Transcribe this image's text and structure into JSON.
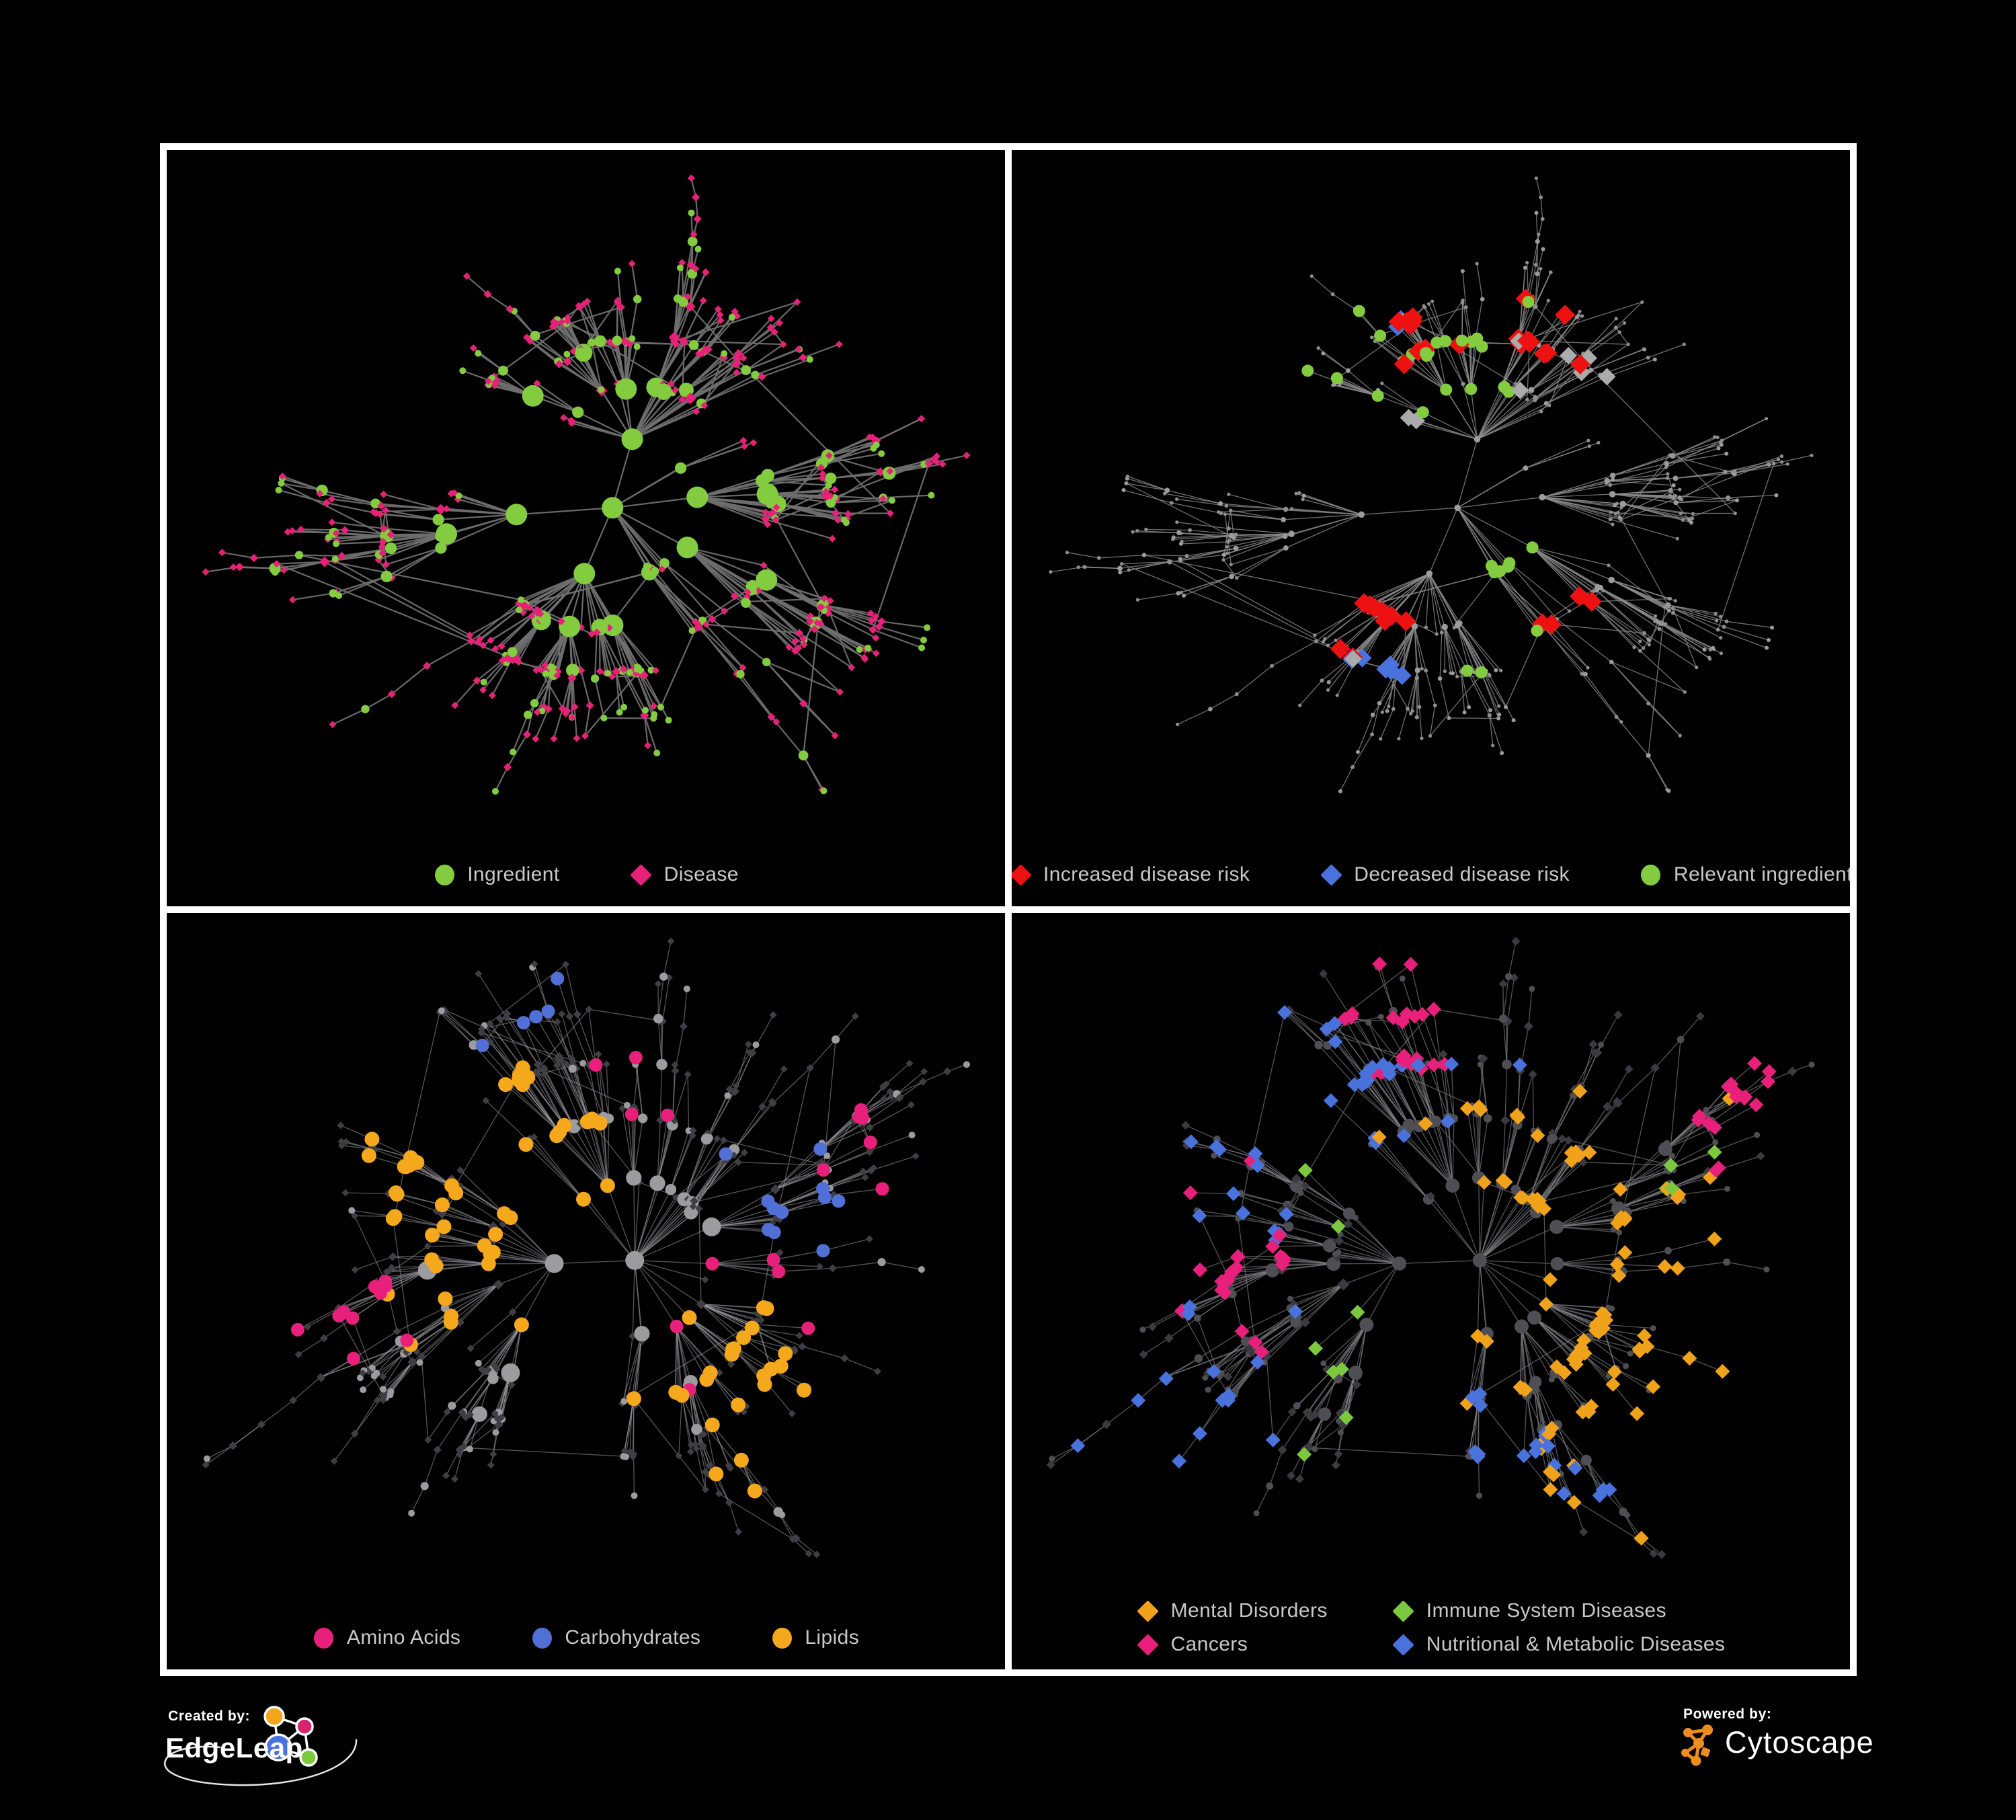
{
  "figure": {
    "background": "#000000",
    "panel_border": "#ffffff"
  },
  "branding": {
    "created_by": {
      "label": "Created by:",
      "name": "EdgeLeap",
      "logo_colors": {
        "orange": "#F2A71B",
        "pink": "#D6246E",
        "blue": "#4A72DC",
        "green": "#7CC83E"
      }
    },
    "powered_by": {
      "label": "Powered by:",
      "name": "Cytoscape",
      "logo_color": "#EE8C1E"
    }
  },
  "panels": [
    {
      "id": "ingredient-disease",
      "legend": {
        "columns": 1,
        "items": [
          {
            "label": "Ingredient",
            "shape": "circle",
            "color": "#84CC3F"
          },
          {
            "label": "Disease",
            "shape": "diamond",
            "color": "#E52277"
          }
        ]
      },
      "network": {
        "seed": 20240,
        "nodes": 520,
        "extra": 85,
        "len": 150
      },
      "style": {
        "edge": {
          "color": "#6f6f6f",
          "width": 2.2,
          "opacity": 0.95
        },
        "ing": {
          "shape": "circle",
          "color": "#84CC3F",
          "base": 5,
          "per": 1.2,
          "max": 11
        },
        "dis": {
          "shape": "diamond",
          "color": "#E52277",
          "base": 5.5,
          "per": 0.6,
          "max": 3
        }
      },
      "highlights": []
    },
    {
      "id": "disease-risk",
      "legend": {
        "columns": 1,
        "items": [
          {
            "label": "Increased disease risk",
            "shape": "diamond",
            "color": "#EE1111"
          },
          {
            "label": "Decreased disease risk",
            "shape": "diamond",
            "color": "#4A72DC"
          },
          {
            "label": "Relevant ingredient",
            "shape": "circle",
            "color": "#84CC3F"
          }
        ]
      },
      "network": {
        "seed": 20240,
        "nodes": 520,
        "extra": 85,
        "len": 150
      },
      "style": {
        "edge": {
          "color": "#8c8c8c",
          "width": 1.3,
          "opacity": 0.8
        },
        "ing": {
          "shape": "circle",
          "color": "#9c9c9c",
          "base": 3.0,
          "per": 0.3,
          "max": 1.8
        },
        "dis": {
          "shape": "circle",
          "color": "#8f8f8f",
          "base": 2.6,
          "per": 0.3,
          "max": 1.4
        }
      },
      "highlights": [
        {
          "type": "dis",
          "shape": "diamond",
          "color": "#EE1111",
          "size": 15,
          "count": 34,
          "clusters": 5,
          "spread": 260,
          "center": true
        },
        {
          "type": "dis",
          "shape": "diamond",
          "color": "#4A72DC",
          "size": 14,
          "count": 9,
          "clusters": 2,
          "spread": 120,
          "center": true
        },
        {
          "type": "dis",
          "shape": "diamond",
          "color": "#ABABAB",
          "size": 13,
          "count": 9,
          "clusters": 6,
          "spread": 420,
          "center": true
        },
        {
          "type": "ing",
          "shape": "circle",
          "color": "#84CC3F",
          "size": 9,
          "count": 36,
          "clusters": 5,
          "spread": 330,
          "center": true
        }
      ]
    },
    {
      "id": "nutrient-classes",
      "legend": {
        "columns": 1,
        "items": [
          {
            "label": "Amino Acids",
            "shape": "circle",
            "color": "#E8207B"
          },
          {
            "label": "Carbohydrates",
            "shape": "circle",
            "color": "#5170D6"
          },
          {
            "label": "Lipids",
            "shape": "circle",
            "color": "#F5A81C"
          }
        ]
      },
      "network": {
        "seed": 99881,
        "nodes": 555,
        "extra": 70,
        "len": 150
      },
      "style": {
        "edge": {
          "color": "#9d9da2",
          "width": 1.3,
          "opacity": 0.55
        },
        "ing": {
          "shape": "circle",
          "color": "#9b9ba0",
          "base": 5,
          "per": 1.1,
          "max": 9
        },
        "dis": {
          "shape": "diamond",
          "color": "#3e3e44",
          "base": 5.5,
          "per": 0.5,
          "max": 2
        }
      },
      "highlights": [
        {
          "type": "ing",
          "shape": "circle",
          "color": "#F5A81C",
          "size": 11,
          "count": 72,
          "clusters": 4,
          "spread": 170
        },
        {
          "type": "ing",
          "shape": "circle",
          "color": "#5170D6",
          "size": 10,
          "count": 16,
          "clusters": 2,
          "spread": 110
        },
        {
          "type": "ing",
          "shape": "circle",
          "color": "#E8207B",
          "size": 10,
          "count": 26,
          "clusters": 9,
          "spread": 650
        }
      ]
    },
    {
      "id": "disease-categories",
      "legend": {
        "columns": 2,
        "items": [
          {
            "label": "Mental Disorders",
            "shape": "diamond",
            "color": "#F0A31A"
          },
          {
            "label": "Immune System Diseases",
            "shape": "diamond",
            "color": "#7CC83E"
          },
          {
            "label": "Cancers",
            "shape": "diamond",
            "color": "#E8207B"
          },
          {
            "label": "Nutritional & Metabolic Diseases",
            "shape": "diamond",
            "color": "#4A72DC"
          }
        ]
      },
      "network": {
        "seed": 99881,
        "nodes": 555,
        "extra": 70,
        "len": 150
      },
      "style": {
        "edge": {
          "color": "#818186",
          "width": 1.3,
          "opacity": 0.65
        },
        "ing": {
          "shape": "circle",
          "color": "#4e4e54",
          "base": 4.5,
          "per": 0.9,
          "max": 6
        },
        "dis": {
          "shape": "diamond",
          "color": "#3a3a40",
          "base": 6.5,
          "per": 0.5,
          "max": 2.5
        }
      },
      "highlights": [
        {
          "type": "dis",
          "shape": "diamond",
          "color": "#F0A31A",
          "size": 11,
          "count": 95,
          "clusters": 2,
          "spread": 190
        },
        {
          "type": "dis",
          "shape": "diamond",
          "color": "#E8207B",
          "size": 11,
          "count": 62,
          "clusters": 3,
          "spread": 190
        },
        {
          "type": "dis",
          "shape": "diamond",
          "color": "#4A72DC",
          "size": 11,
          "count": 72,
          "clusters": 7,
          "spread": 200
        },
        {
          "type": "dis",
          "shape": "diamond",
          "color": "#7CC83E",
          "size": 11,
          "count": 12,
          "clusters": 10,
          "spread": 900
        }
      ]
    }
  ]
}
